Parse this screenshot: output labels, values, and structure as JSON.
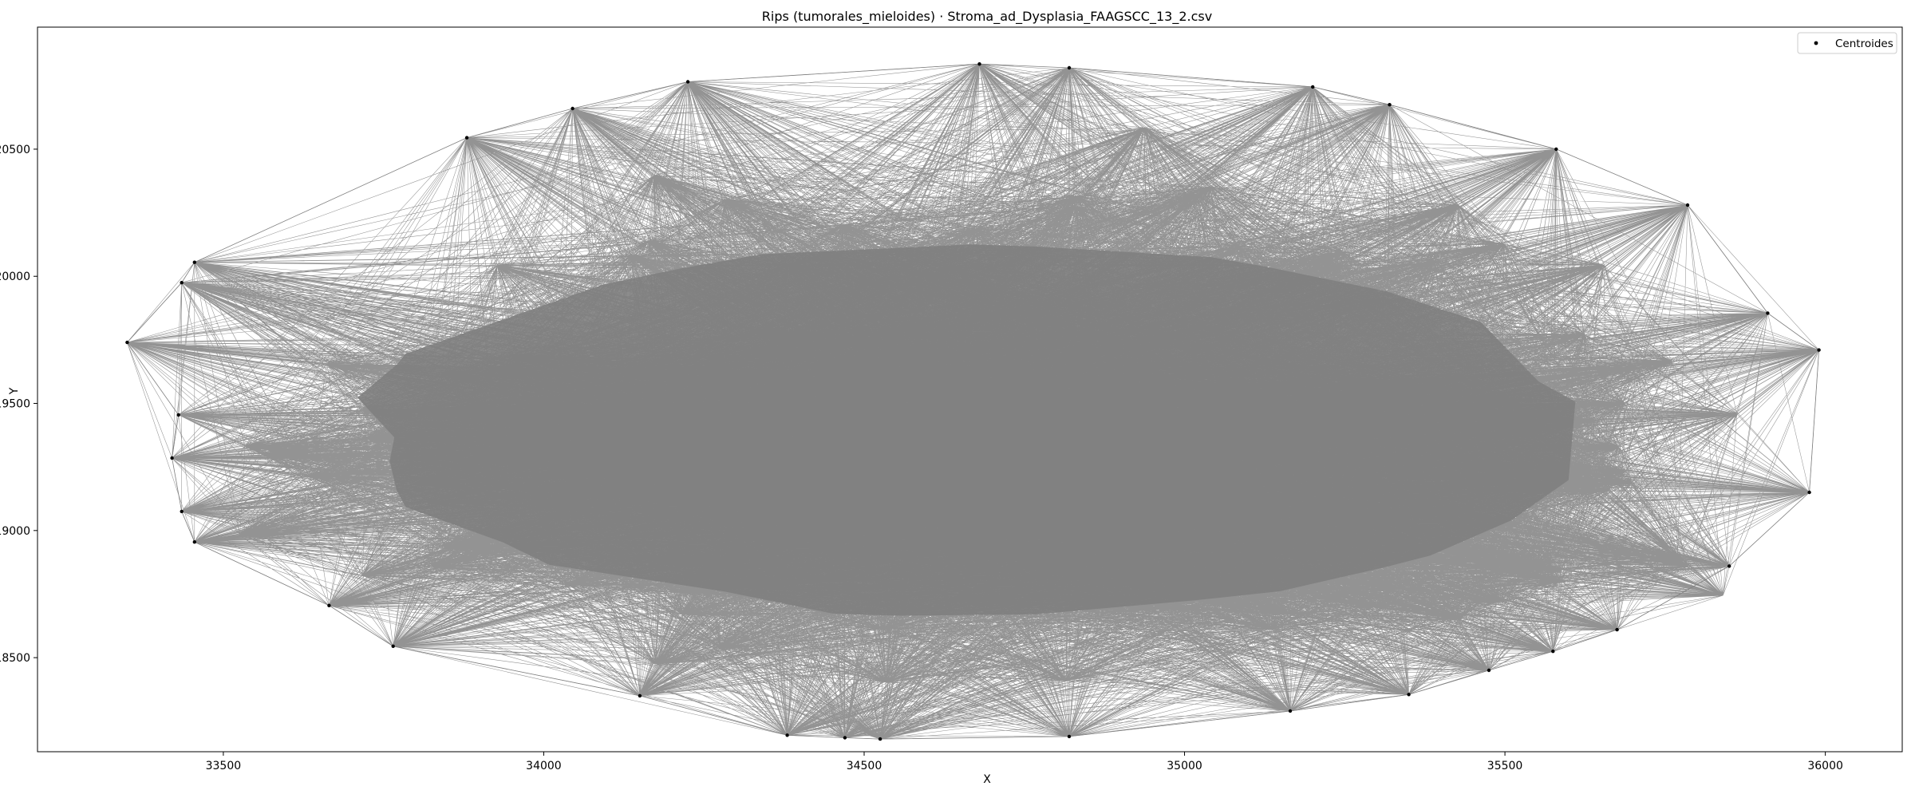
{
  "chart_data": {
    "type": "scatter",
    "title": "Rips (tumorales_mieloides) · Stroma_ad_Dysplasia_FAAGSCC_13_2.csv",
    "xlabel": "X",
    "ylabel": "Y",
    "xlim": [
      33210,
      36120
    ],
    "ylim": [
      18130,
      20980
    ],
    "xticks": [
      33500,
      34000,
      34500,
      35000,
      35500,
      36000
    ],
    "yticks": [
      18500,
      19000,
      19500,
      20000,
      20500
    ],
    "legend": {
      "label": "Centroides",
      "location": "upper right"
    },
    "edge_color": "#808080",
    "point_color": "#000000",
    "hull_points": [
      [
        33350,
        19740
      ],
      [
        33435,
        19975
      ],
      [
        33455,
        20055
      ],
      [
        33880,
        20545
      ],
      [
        34045,
        20660
      ],
      [
        34225,
        20765
      ],
      [
        34680,
        20835
      ],
      [
        34820,
        20820
      ],
      [
        35200,
        20745
      ],
      [
        35320,
        20675
      ],
      [
        35580,
        20500
      ],
      [
        35785,
        20280
      ],
      [
        35910,
        19855
      ],
      [
        35990,
        19710
      ],
      [
        35975,
        19150
      ],
      [
        35850,
        18860
      ],
      [
        35675,
        18610
      ],
      [
        35575,
        18525
      ],
      [
        35475,
        18450
      ],
      [
        35350,
        18355
      ],
      [
        35165,
        18290
      ],
      [
        34820,
        18190
      ],
      [
        34525,
        18180
      ],
      [
        34470,
        18185
      ],
      [
        34380,
        18195
      ],
      [
        34150,
        18350
      ],
      [
        33765,
        18545
      ],
      [
        33665,
        18705
      ],
      [
        33455,
        18955
      ],
      [
        33435,
        19075
      ],
      [
        33420,
        19285
      ],
      [
        33430,
        19455
      ]
    ]
  }
}
